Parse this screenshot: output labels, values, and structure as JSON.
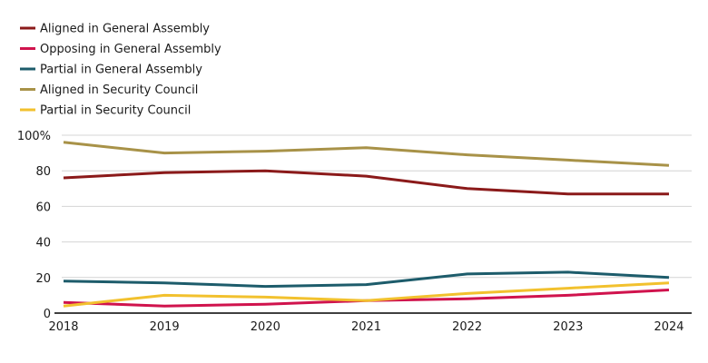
{
  "chart_data": {
    "type": "line",
    "title": "",
    "xlabel": "",
    "ylabel": "",
    "x": [
      "2018",
      "2019",
      "2020",
      "2021",
      "2022",
      "2023",
      "2024"
    ],
    "ylim": [
      0,
      100
    ],
    "yticks": [
      0,
      20,
      40,
      60,
      80,
      100
    ],
    "ytick_labels": [
      "0",
      "20",
      "40",
      "60",
      "80",
      "100%"
    ],
    "legend_position": "top-left",
    "grid": "horizontal",
    "series": [
      {
        "name": "Aligned in General Assembly",
        "color": "#8b1a1a",
        "values": [
          76,
          79,
          80,
          77,
          70,
          67,
          67
        ]
      },
      {
        "name": "Opposing in General Assembly",
        "color": "#d0134d",
        "values": [
          6,
          4,
          5,
          7,
          8,
          10,
          13
        ]
      },
      {
        "name": "Partial in General Assembly",
        "color": "#1d5c6b",
        "values": [
          18,
          17,
          15,
          16,
          22,
          23,
          20
        ]
      },
      {
        "name": "Aligned in Security Council",
        "color": "#a89248",
        "values": [
          96,
          90,
          91,
          93,
          89,
          86,
          83
        ]
      },
      {
        "name": "Partial in Security Council",
        "color": "#f2c12e",
        "values": [
          4,
          10,
          9,
          7,
          11,
          14,
          17
        ]
      }
    ]
  }
}
